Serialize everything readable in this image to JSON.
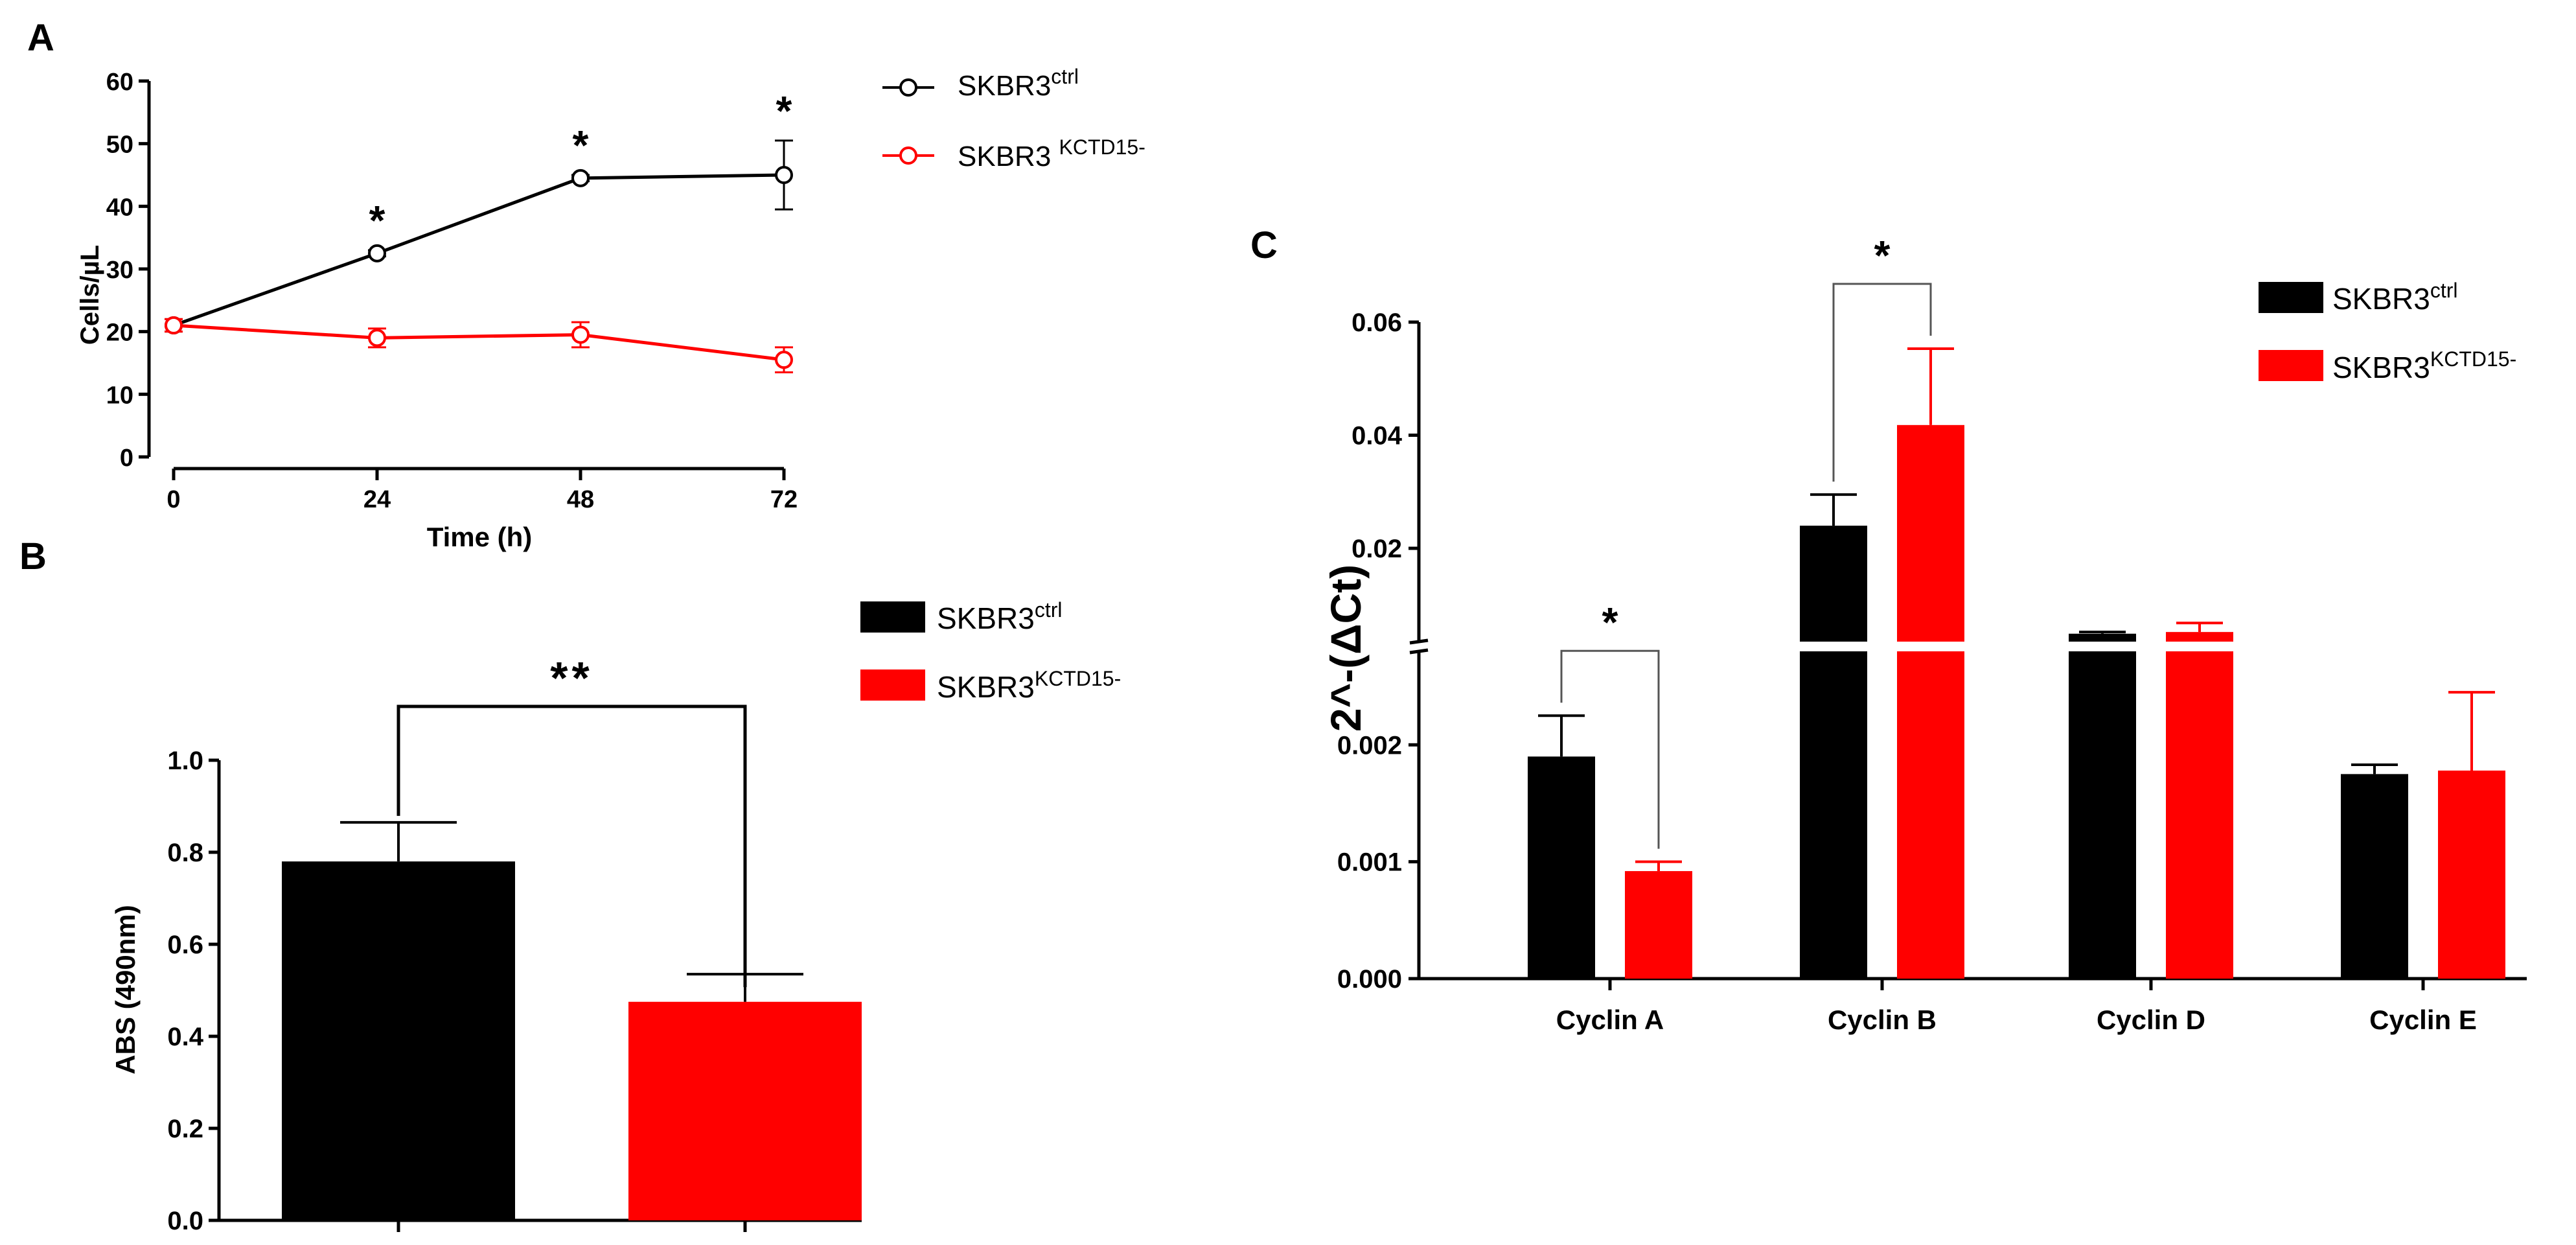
{
  "colors": {
    "ctrl": "#000000",
    "ko": "#ff0000",
    "axis": "#000000"
  },
  "panel_letters": {
    "a": "A",
    "b": "B",
    "c": "C"
  },
  "legend_text": {
    "ctrl_base": "SKBR3",
    "ctrl_sup": "ctrl",
    "ko_base": "SKBR3",
    "ko_sup": "KCTD15-",
    "ko_base_spaced": "SKBR3 ",
    "ko_sup_spaced": "KCTD15-"
  },
  "chart_data": [
    {
      "panel": "A",
      "type": "line",
      "xlabel": "Time (h)",
      "ylabel": "Cells/µL",
      "xlim": [
        0,
        72
      ],
      "ylim": [
        0,
        60
      ],
      "x_ticks": [
        0,
        24,
        48,
        72
      ],
      "y_ticks": [
        0,
        10,
        20,
        30,
        40,
        50,
        60
      ],
      "x": [
        0,
        24,
        48,
        72
      ],
      "series": [
        {
          "name": "SKBR3 ctrl",
          "values": [
            21,
            32.5,
            44.5,
            45
          ],
          "errors": [
            1,
            0.5,
            0.5,
            5.5
          ]
        },
        {
          "name": "SKBR3 KCTD15-",
          "values": [
            21,
            19,
            19.5,
            15.5
          ],
          "errors": [
            1,
            1.5,
            2,
            2
          ]
        }
      ],
      "significance": [
        {
          "x": 24,
          "label": "*"
        },
        {
          "x": 48,
          "label": "*"
        },
        {
          "x": 72,
          "label": "*"
        }
      ]
    },
    {
      "panel": "B",
      "type": "bar",
      "ylabel": "ABS (490nm)",
      "ylim": [
        0,
        1.0
      ],
      "y_ticks": [
        "0.0",
        "0.2",
        "0.4",
        "0.6",
        "0.8",
        "1.0"
      ],
      "categories": [
        "SKBR3 ctrl",
        "SKBR3 KCTD15-"
      ],
      "values": [
        0.78,
        0.475
      ],
      "errors": [
        0.085,
        0.06
      ],
      "significance": "**"
    },
    {
      "panel": "C",
      "type": "bar",
      "ylabel": "2^-(ΔCt)",
      "categories": [
        "Cyclin A",
        "Cyclin B",
        "Cyclin D",
        "Cyclin E"
      ],
      "axis_break": {
        "lower_range": [
          0,
          0.0028
        ],
        "upper_range": [
          0.0035,
          0.06
        ]
      },
      "y_ticks_lower": [
        "0.000",
        "0.001",
        "0.002"
      ],
      "y_ticks_upper": [
        "0.02",
        "0.04",
        "0.06"
      ],
      "series": [
        {
          "name": "SKBR3 ctrl",
          "values": [
            0.0019,
            0.024,
            0.0049,
            0.00175
          ],
          "errors": [
            0.00035,
            0.0055,
            0.0003,
            8e-05
          ]
        },
        {
          "name": "SKBR3 KCTD15-",
          "values": [
            0.00092,
            0.0418,
            0.0052,
            0.00178
          ],
          "errors": [
            8e-05,
            0.0135,
            0.0016,
            0.00067
          ]
        }
      ],
      "significance": [
        {
          "category": "Cyclin A",
          "label": "*"
        },
        {
          "category": "Cyclin B",
          "label": "*"
        }
      ]
    }
  ]
}
